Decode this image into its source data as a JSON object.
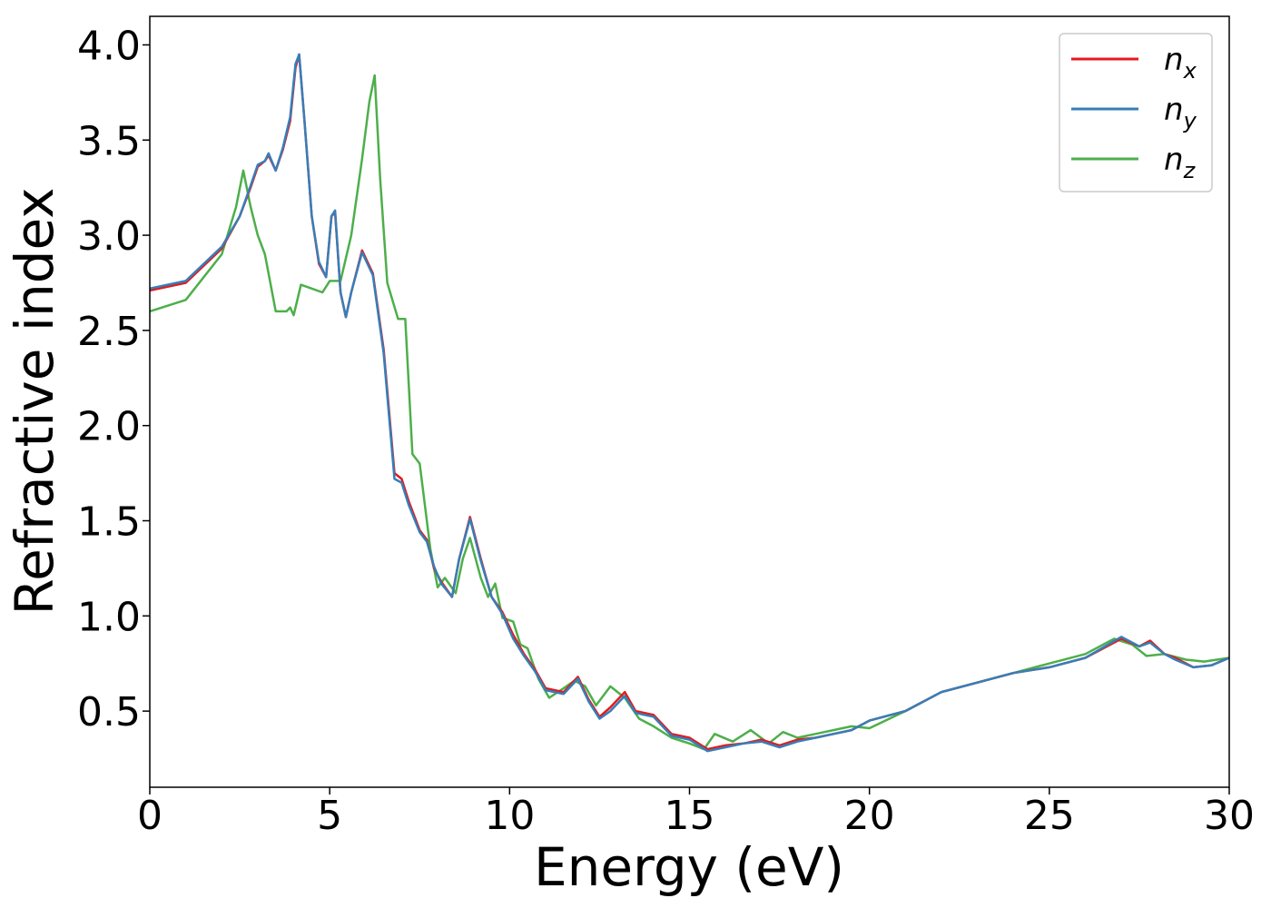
{
  "chart_data": {
    "type": "line",
    "xlabel": "Energy (eV)",
    "ylabel": "Refractive index",
    "xlim": [
      0,
      30
    ],
    "ylim": [
      0.1,
      4.15
    ],
    "x_ticks": [
      0,
      5,
      10,
      15,
      20,
      25,
      30
    ],
    "x_tick_labels": [
      "0",
      "5",
      "10",
      "15",
      "20",
      "25",
      "30"
    ],
    "y_ticks": [
      0.5,
      1.0,
      1.5,
      2.0,
      2.5,
      3.0,
      3.5,
      4.0
    ],
    "y_tick_labels": [
      "0.5",
      "1.0",
      "1.5",
      "2.0",
      "2.5",
      "3.0",
      "3.5",
      "4.0"
    ],
    "grid": false,
    "legend_position": "top-right",
    "series": [
      {
        "name": "n",
        "subscript": "x",
        "color": "#e41a1c",
        "points": [
          [
            0,
            2.71
          ],
          [
            1,
            2.75
          ],
          [
            2,
            2.93
          ],
          [
            2.5,
            3.1
          ],
          [
            2.8,
            3.25
          ],
          [
            3.0,
            3.36
          ],
          [
            3.2,
            3.39
          ],
          [
            3.3,
            3.42
          ],
          [
            3.5,
            3.34
          ],
          [
            3.7,
            3.45
          ],
          [
            3.9,
            3.6
          ],
          [
            4.05,
            3.88
          ],
          [
            4.15,
            3.95
          ],
          [
            4.3,
            3.6
          ],
          [
            4.5,
            3.1
          ],
          [
            4.7,
            2.85
          ],
          [
            4.9,
            2.78
          ],
          [
            5.05,
            3.1
          ],
          [
            5.15,
            3.12
          ],
          [
            5.3,
            2.7
          ],
          [
            5.45,
            2.57
          ],
          [
            5.6,
            2.7
          ],
          [
            5.9,
            2.92
          ],
          [
            6.2,
            2.8
          ],
          [
            6.5,
            2.4
          ],
          [
            6.8,
            1.75
          ],
          [
            7.0,
            1.72
          ],
          [
            7.2,
            1.6
          ],
          [
            7.5,
            1.45
          ],
          [
            7.7,
            1.4
          ],
          [
            7.9,
            1.25
          ],
          [
            8.1,
            1.18
          ],
          [
            8.4,
            1.1
          ],
          [
            8.6,
            1.3
          ],
          [
            8.9,
            1.52
          ],
          [
            9.2,
            1.3
          ],
          [
            9.5,
            1.1
          ],
          [
            9.8,
            1.02
          ],
          [
            10.1,
            0.9
          ],
          [
            10.4,
            0.8
          ],
          [
            10.7,
            0.72
          ],
          [
            11.0,
            0.62
          ],
          [
            11.5,
            0.6
          ],
          [
            11.9,
            0.68
          ],
          [
            12.2,
            0.56
          ],
          [
            12.5,
            0.47
          ],
          [
            12.8,
            0.52
          ],
          [
            13.2,
            0.6
          ],
          [
            13.5,
            0.5
          ],
          [
            14.0,
            0.48
          ],
          [
            14.5,
            0.38
          ],
          [
            15.0,
            0.36
          ],
          [
            15.5,
            0.3
          ],
          [
            16.0,
            0.32
          ],
          [
            16.5,
            0.33
          ],
          [
            17.0,
            0.35
          ],
          [
            17.5,
            0.32
          ],
          [
            18.0,
            0.35
          ],
          [
            18.5,
            0.36
          ],
          [
            19.0,
            0.38
          ],
          [
            19.5,
            0.4
          ],
          [
            20.0,
            0.45
          ],
          [
            21.0,
            0.5
          ],
          [
            22.0,
            0.6
          ],
          [
            23.0,
            0.65
          ],
          [
            24.0,
            0.7
          ],
          [
            25.0,
            0.73
          ],
          [
            26.0,
            0.78
          ],
          [
            27.0,
            0.88
          ],
          [
            27.5,
            0.84
          ],
          [
            27.8,
            0.87
          ],
          [
            28.2,
            0.8
          ],
          [
            28.5,
            0.78
          ],
          [
            29.0,
            0.73
          ],
          [
            29.5,
            0.74
          ],
          [
            30.0,
            0.78
          ]
        ]
      },
      {
        "name": "n",
        "subscript": "y",
        "color": "#377eb8",
        "points": [
          [
            0,
            2.72
          ],
          [
            1,
            2.76
          ],
          [
            2,
            2.94
          ],
          [
            2.5,
            3.1
          ],
          [
            2.8,
            3.26
          ],
          [
            3.0,
            3.37
          ],
          [
            3.2,
            3.39
          ],
          [
            3.3,
            3.43
          ],
          [
            3.5,
            3.34
          ],
          [
            3.7,
            3.46
          ],
          [
            3.9,
            3.62
          ],
          [
            4.05,
            3.9
          ],
          [
            4.15,
            3.95
          ],
          [
            4.3,
            3.6
          ],
          [
            4.5,
            3.1
          ],
          [
            4.7,
            2.86
          ],
          [
            4.9,
            2.78
          ],
          [
            5.05,
            3.1
          ],
          [
            5.15,
            3.13
          ],
          [
            5.3,
            2.7
          ],
          [
            5.45,
            2.57
          ],
          [
            5.6,
            2.7
          ],
          [
            5.9,
            2.91
          ],
          [
            6.2,
            2.79
          ],
          [
            6.5,
            2.38
          ],
          [
            6.8,
            1.72
          ],
          [
            7.0,
            1.7
          ],
          [
            7.2,
            1.58
          ],
          [
            7.5,
            1.44
          ],
          [
            7.7,
            1.39
          ],
          [
            7.9,
            1.26
          ],
          [
            8.1,
            1.17
          ],
          [
            8.4,
            1.1
          ],
          [
            8.6,
            1.3
          ],
          [
            8.9,
            1.51
          ],
          [
            9.2,
            1.29
          ],
          [
            9.5,
            1.1
          ],
          [
            9.8,
            1.01
          ],
          [
            10.1,
            0.88
          ],
          [
            10.4,
            0.79
          ],
          [
            10.7,
            0.71
          ],
          [
            11.0,
            0.61
          ],
          [
            11.5,
            0.59
          ],
          [
            11.9,
            0.67
          ],
          [
            12.2,
            0.55
          ],
          [
            12.5,
            0.46
          ],
          [
            12.8,
            0.5
          ],
          [
            13.2,
            0.58
          ],
          [
            13.5,
            0.49
          ],
          [
            14.0,
            0.47
          ],
          [
            14.5,
            0.37
          ],
          [
            15.0,
            0.35
          ],
          [
            15.5,
            0.29
          ],
          [
            16.0,
            0.31
          ],
          [
            16.5,
            0.33
          ],
          [
            17.0,
            0.34
          ],
          [
            17.5,
            0.31
          ],
          [
            18.0,
            0.34
          ],
          [
            18.5,
            0.36
          ],
          [
            19.0,
            0.38
          ],
          [
            19.5,
            0.4
          ],
          [
            20.0,
            0.45
          ],
          [
            21.0,
            0.5
          ],
          [
            22.0,
            0.6
          ],
          [
            23.0,
            0.65
          ],
          [
            24.0,
            0.7
          ],
          [
            25.0,
            0.73
          ],
          [
            26.0,
            0.78
          ],
          [
            27.0,
            0.89
          ],
          [
            27.5,
            0.84
          ],
          [
            27.8,
            0.86
          ],
          [
            28.2,
            0.8
          ],
          [
            28.5,
            0.77
          ],
          [
            29.0,
            0.73
          ],
          [
            29.5,
            0.74
          ],
          [
            30.0,
            0.78
          ]
        ]
      },
      {
        "name": "n",
        "subscript": "z",
        "color": "#4daf4a",
        "points": [
          [
            0,
            2.6
          ],
          [
            1,
            2.66
          ],
          [
            2,
            2.9
          ],
          [
            2.4,
            3.15
          ],
          [
            2.6,
            3.34
          ],
          [
            2.8,
            3.15
          ],
          [
            3.0,
            3.0
          ],
          [
            3.2,
            2.9
          ],
          [
            3.5,
            2.6
          ],
          [
            3.8,
            2.6
          ],
          [
            3.9,
            2.62
          ],
          [
            4.0,
            2.58
          ],
          [
            4.2,
            2.74
          ],
          [
            4.5,
            2.72
          ],
          [
            4.8,
            2.7
          ],
          [
            5.0,
            2.76
          ],
          [
            5.3,
            2.76
          ],
          [
            5.6,
            3.0
          ],
          [
            5.9,
            3.4
          ],
          [
            6.1,
            3.7
          ],
          [
            6.25,
            3.84
          ],
          [
            6.4,
            3.3
          ],
          [
            6.6,
            2.75
          ],
          [
            6.9,
            2.56
          ],
          [
            7.1,
            2.56
          ],
          [
            7.3,
            1.85
          ],
          [
            7.5,
            1.8
          ],
          [
            7.8,
            1.35
          ],
          [
            8.0,
            1.15
          ],
          [
            8.2,
            1.2
          ],
          [
            8.5,
            1.12
          ],
          [
            8.7,
            1.3
          ],
          [
            8.9,
            1.41
          ],
          [
            9.2,
            1.2
          ],
          [
            9.4,
            1.1
          ],
          [
            9.6,
            1.17
          ],
          [
            9.8,
            0.99
          ],
          [
            10.1,
            0.97
          ],
          [
            10.3,
            0.85
          ],
          [
            10.5,
            0.83
          ],
          [
            10.8,
            0.67
          ],
          [
            11.1,
            0.57
          ],
          [
            11.5,
            0.62
          ],
          [
            11.8,
            0.66
          ],
          [
            12.1,
            0.63
          ],
          [
            12.4,
            0.53
          ],
          [
            12.8,
            0.63
          ],
          [
            13.2,
            0.57
          ],
          [
            13.6,
            0.46
          ],
          [
            14.0,
            0.42
          ],
          [
            14.5,
            0.36
          ],
          [
            15.0,
            0.33
          ],
          [
            15.4,
            0.3
          ],
          [
            15.7,
            0.38
          ],
          [
            16.2,
            0.34
          ],
          [
            16.7,
            0.4
          ],
          [
            17.2,
            0.33
          ],
          [
            17.6,
            0.39
          ],
          [
            18.0,
            0.36
          ],
          [
            18.5,
            0.38
          ],
          [
            19.0,
            0.4
          ],
          [
            19.5,
            0.42
          ],
          [
            20.0,
            0.41
          ],
          [
            21.0,
            0.5
          ],
          [
            22.0,
            0.6
          ],
          [
            23.0,
            0.65
          ],
          [
            24.0,
            0.7
          ],
          [
            25.0,
            0.75
          ],
          [
            26.0,
            0.8
          ],
          [
            26.8,
            0.88
          ],
          [
            27.3,
            0.85
          ],
          [
            27.7,
            0.79
          ],
          [
            28.2,
            0.8
          ],
          [
            28.8,
            0.77
          ],
          [
            29.3,
            0.76
          ],
          [
            30.0,
            0.78
          ]
        ]
      }
    ]
  }
}
